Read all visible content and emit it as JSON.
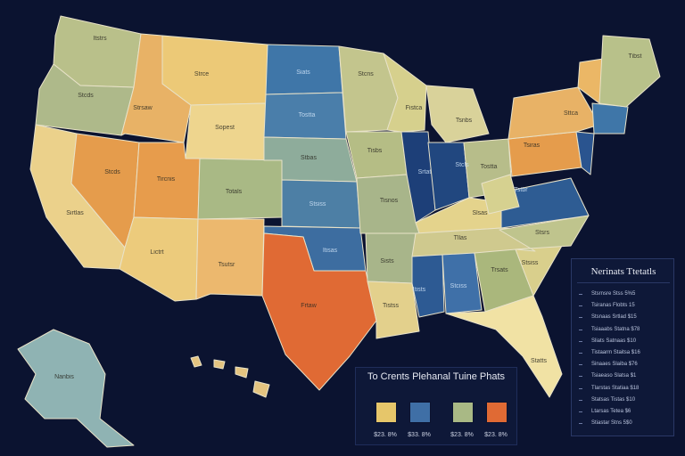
{
  "map": {
    "region_labels": [
      "Itstrs",
      "Stcds",
      "Strsaw",
      "Strce",
      "Siats",
      "Tostta",
      "Sopest",
      "Stcds",
      "Tircnis",
      "Totals",
      "Sirtlas",
      "Lictrt",
      "Tsutsr",
      "Stbas",
      "Stsiss",
      "Itisas",
      "Frtaw",
      "Stcns",
      "Fistca",
      "Tsnbs",
      "Tisbs",
      "Srtat",
      "Stcls",
      "Tisnos",
      "Tostta",
      "Tsiras",
      "Sttca",
      "Tibst",
      "Tstbr",
      "Slsas",
      "Tllas",
      "Stsrs",
      "Sists",
      "Itists",
      "Stciss",
      "Tistss",
      "Trsats",
      "Stsiss",
      "Statts",
      "Tisrbs",
      "Tssbs",
      "Fstrs",
      "Tsiss",
      "Tistbs",
      "Statss",
      "Nanbis"
    ],
    "colors": {
      "background": "#0b1330",
      "tan": "#e8d48a",
      "olive": "#aab77c",
      "sage": "#b9c08a",
      "orange": "#e79c4c",
      "deep_orange": "#e06a34",
      "blue": "#3f76a8",
      "navy": "#1d3f78",
      "teal": "#8fb3b3",
      "border": "#e8e2c8"
    }
  },
  "legend": {
    "title": "To Crents Plehanal Tuine Phats",
    "items": [
      {
        "label": "$23. 8%",
        "color": "#e6c66a"
      },
      {
        "label": "$33. 8%",
        "color": "#3f6fa6"
      },
      {
        "label": "$23. 8%",
        "color": "#a9b985"
      },
      {
        "label": "$23. 8%",
        "color": "#e06a34"
      }
    ]
  },
  "side_panel": {
    "title": "Nerinats Ttetatls",
    "rows": [
      "Stsrnsre Stss   5%5",
      "Tsiranas Flobts  15",
      "Stsnaas Srtlad   $15",
      "Tsiaaabs Statna  $78",
      "Sliats Satnaas  $10",
      "Tistaarm Staitsa  $16",
      "Sinaaes Slaiba  $76",
      "Tsiaeaso Slatsa   $1",
      "Tlarstas Statiaa  $18",
      "Statsas Tistas  $10",
      "Ltarsas Tetea  $6",
      "Stiastar Stns  5$0"
    ]
  }
}
